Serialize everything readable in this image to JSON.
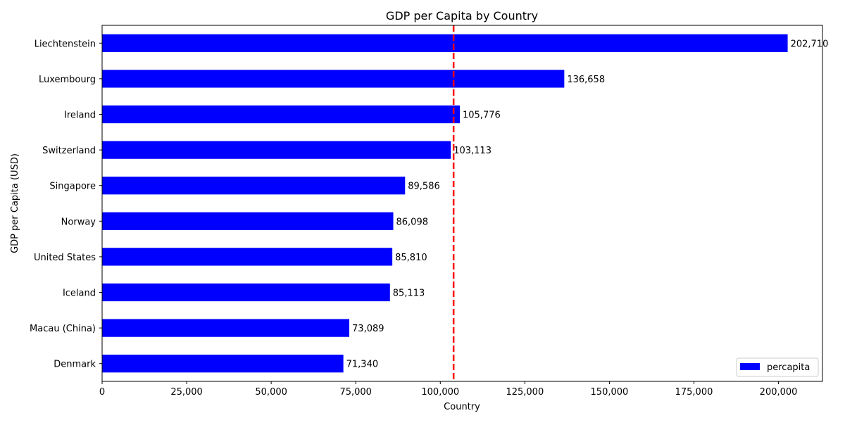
{
  "chart_data": {
    "type": "bar",
    "orientation": "horizontal",
    "title": "GDP per Capita by Country",
    "xlabel": "Country",
    "ylabel": "GDP per Capita (USD)",
    "categories": [
      "Liechtenstein",
      "Luxembourg",
      "Ireland",
      "Switzerland",
      "Singapore",
      "Norway",
      "United States",
      "Iceland",
      "Macau (China)",
      "Denmark"
    ],
    "series": [
      {
        "name": "percapita",
        "values": [
          202710,
          136658,
          105776,
          103113,
          89586,
          86098,
          85810,
          85113,
          73089,
          71340
        ],
        "color": "#0000ff"
      }
    ],
    "data_labels": [
      "202,710",
      "136,658",
      "105,776",
      "103,113",
      "89,586",
      "86,098",
      "85,810",
      "85,113",
      "73,089",
      "71,340"
    ],
    "xlim": [
      0,
      213000
    ],
    "x_ticks": [
      0,
      25000,
      50000,
      75000,
      100000,
      125000,
      150000,
      175000,
      200000
    ],
    "x_tick_labels": [
      "0",
      "25,000",
      "50,000",
      "75,000",
      "100,000",
      "125,000",
      "150,000",
      "175,000",
      "200,000"
    ],
    "reference_line": {
      "value": 103929,
      "color": "#ff0000",
      "style": "dashed"
    },
    "grid": false,
    "legend_position": "lower-right"
  }
}
